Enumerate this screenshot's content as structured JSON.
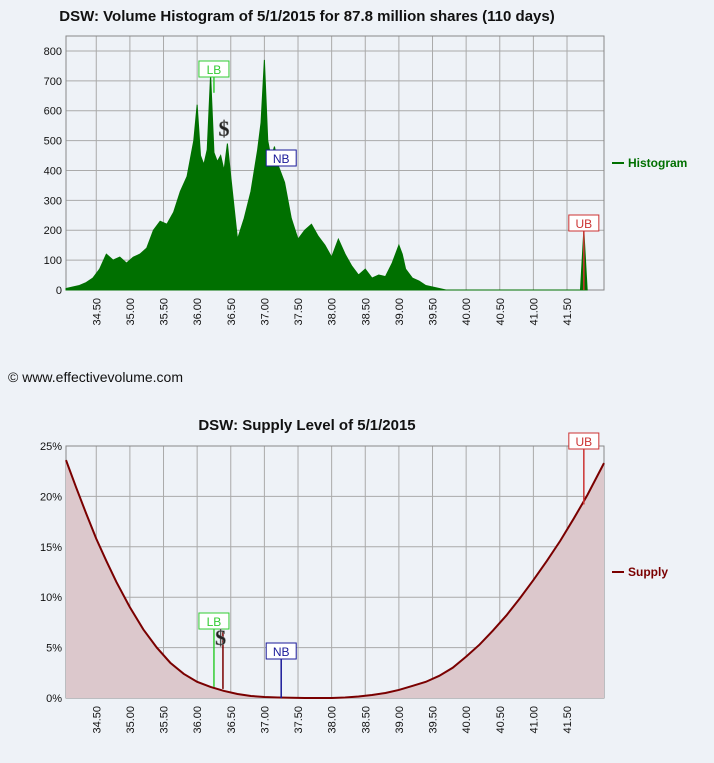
{
  "hist_title": "DSW: Volume Histogram of 5/1/2015 for 87.8 million shares (110 days)",
  "supply_title": "DSW: Supply Level of 5/1/2015",
  "copyright": "© www.effectivevolume.com",
  "colors": {
    "histogram": "#007000",
    "supply_line": "#7a0000",
    "supply_fill": "#dcc8cc",
    "lb": "#33cc33",
    "nb": "#1a1a99",
    "ub": "#cc3333",
    "grid": "#aaaaaa",
    "background": "#eef2f7"
  },
  "markers": {
    "lb_label": "LB",
    "nb_label": "NB",
    "ub_label": "UB",
    "dollar_label": "$"
  },
  "chart_data": [
    {
      "type": "area",
      "title": "DSW: Volume Histogram of 5/1/2015 for 87.8 million shares (110 days)",
      "legend": "Histogram",
      "legend_position": "right",
      "grid": true,
      "xlim": [
        34.05,
        42.05
      ],
      "ylim": [
        0,
        850
      ],
      "x_ticks": [
        "34.50",
        "35.00",
        "35.50",
        "36.00",
        "36.50",
        "37.00",
        "37.50",
        "38.00",
        "38.50",
        "39.00",
        "39.50",
        "40.00",
        "40.50",
        "41.00",
        "41.50"
      ],
      "y_ticks": [
        "0",
        "100",
        "200",
        "300",
        "400",
        "500",
        "600",
        "700",
        "800"
      ],
      "x": [
        34.05,
        34.15,
        34.25,
        34.35,
        34.45,
        34.55,
        34.65,
        34.7,
        34.75,
        34.85,
        34.95,
        35.05,
        35.15,
        35.25,
        35.35,
        35.45,
        35.55,
        35.65,
        35.75,
        35.85,
        35.95,
        36.0,
        36.05,
        36.1,
        36.15,
        36.2,
        36.25,
        36.3,
        36.35,
        36.4,
        36.45,
        36.5,
        36.6,
        36.7,
        36.8,
        36.9,
        36.95,
        37.0,
        37.05,
        37.1,
        37.15,
        37.2,
        37.3,
        37.4,
        37.5,
        37.6,
        37.7,
        37.8,
        37.9,
        38.0,
        38.1,
        38.2,
        38.3,
        38.4,
        38.5,
        38.6,
        38.7,
        38.8,
        38.9,
        39.0,
        39.05,
        39.1,
        39.2,
        39.3,
        39.4,
        39.5,
        39.6,
        39.7,
        41.7,
        41.75,
        41.8
      ],
      "values": [
        5,
        10,
        15,
        25,
        40,
        70,
        120,
        110,
        100,
        110,
        90,
        110,
        120,
        140,
        200,
        230,
        220,
        260,
        330,
        380,
        500,
        620,
        450,
        420,
        470,
        720,
        460,
        430,
        450,
        400,
        490,
        380,
        170,
        240,
        330,
        470,
        560,
        770,
        500,
        440,
        480,
        420,
        360,
        240,
        170,
        200,
        220,
        180,
        150,
        110,
        170,
        120,
        80,
        50,
        70,
        40,
        50,
        45,
        90,
        150,
        120,
        70,
        40,
        30,
        15,
        10,
        5,
        0,
        0,
        200,
        0
      ]
    },
    {
      "type": "area",
      "title": "DSW: Supply Level of 5/1/2015",
      "legend": "Supply",
      "legend_position": "right",
      "grid": true,
      "xlim": [
        34.05,
        42.05
      ],
      "ylim": [
        0,
        25
      ],
      "x_ticks": [
        "34.50",
        "35.00",
        "35.50",
        "36.00",
        "36.50",
        "37.00",
        "37.50",
        "38.00",
        "38.50",
        "39.00",
        "39.50",
        "40.00",
        "40.50",
        "41.00",
        "41.50"
      ],
      "y_ticks": [
        "0%",
        "5%",
        "10%",
        "15%",
        "20%",
        "25%"
      ],
      "x": [
        34.05,
        34.2,
        34.35,
        34.5,
        34.65,
        34.8,
        35.0,
        35.2,
        35.4,
        35.6,
        35.8,
        36.0,
        36.2,
        36.4,
        36.6,
        36.8,
        37.0,
        37.2,
        37.4,
        37.6,
        37.8,
        38.0,
        38.2,
        38.4,
        38.6,
        38.8,
        39.0,
        39.2,
        39.4,
        39.6,
        39.8,
        40.0,
        40.2,
        40.4,
        40.6,
        40.8,
        41.0,
        41.2,
        41.4,
        41.6,
        41.8,
        42.05
      ],
      "values": [
        23.6,
        20.9,
        18.3,
        15.8,
        13.6,
        11.5,
        9.0,
        6.8,
        5.0,
        3.5,
        2.4,
        1.6,
        1.1,
        0.7,
        0.4,
        0.2,
        0.1,
        0.05,
        0.02,
        0.0,
        0.0,
        0.0,
        0.05,
        0.15,
        0.3,
        0.5,
        0.8,
        1.2,
        1.6,
        2.2,
        3.0,
        4.1,
        5.3,
        6.7,
        8.2,
        9.9,
        11.7,
        13.6,
        15.6,
        17.8,
        20.1,
        23.3
      ]
    }
  ],
  "marker_positions": {
    "hist": {
      "lb_x": 36.25,
      "nb_x": 37.25,
      "ub_x": 41.75,
      "dollar_x": 36.4
    },
    "supply": {
      "lb_x": 36.25,
      "nb_x": 37.25,
      "ub_x": 41.75,
      "dollar_x": 36.35
    }
  }
}
